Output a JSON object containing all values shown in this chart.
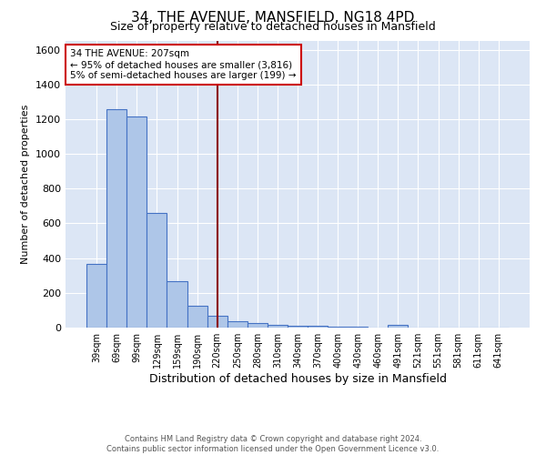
{
  "title": "34, THE AVENUE, MANSFIELD, NG18 4PD",
  "subtitle": "Size of property relative to detached houses in Mansfield",
  "xlabel": "Distribution of detached houses by size in Mansfield",
  "ylabel": "Number of detached properties",
  "footer": "Contains HM Land Registry data © Crown copyright and database right 2024.\nContains public sector information licensed under the Open Government Licence v3.0.",
  "categories": [
    "39sqm",
    "69sqm",
    "99sqm",
    "129sqm",
    "159sqm",
    "190sqm",
    "220sqm",
    "250sqm",
    "280sqm",
    "310sqm",
    "340sqm",
    "370sqm",
    "400sqm",
    "430sqm",
    "460sqm",
    "491sqm",
    "521sqm",
    "551sqm",
    "581sqm",
    "611sqm",
    "641sqm"
  ],
  "values": [
    365,
    1255,
    1215,
    660,
    265,
    125,
    70,
    38,
    25,
    15,
    10,
    8,
    5,
    3,
    0,
    18,
    0,
    0,
    0,
    0,
    0
  ],
  "bar_color": "#aec6e8",
  "bar_edge_color": "#4472c4",
  "background_color": "#dce6f5",
  "vline_x": 6.0,
  "vline_color": "#8b0000",
  "annotation_text": "34 THE AVENUE: 207sqm\n← 95% of detached houses are smaller (3,816)\n5% of semi-detached houses are larger (199) →",
  "annotation_box_color": "white",
  "annotation_box_edge_color": "#cc0000",
  "ylim": [
    0,
    1650
  ],
  "yticks": [
    0,
    200,
    400,
    600,
    800,
    1000,
    1200,
    1400,
    1600
  ]
}
